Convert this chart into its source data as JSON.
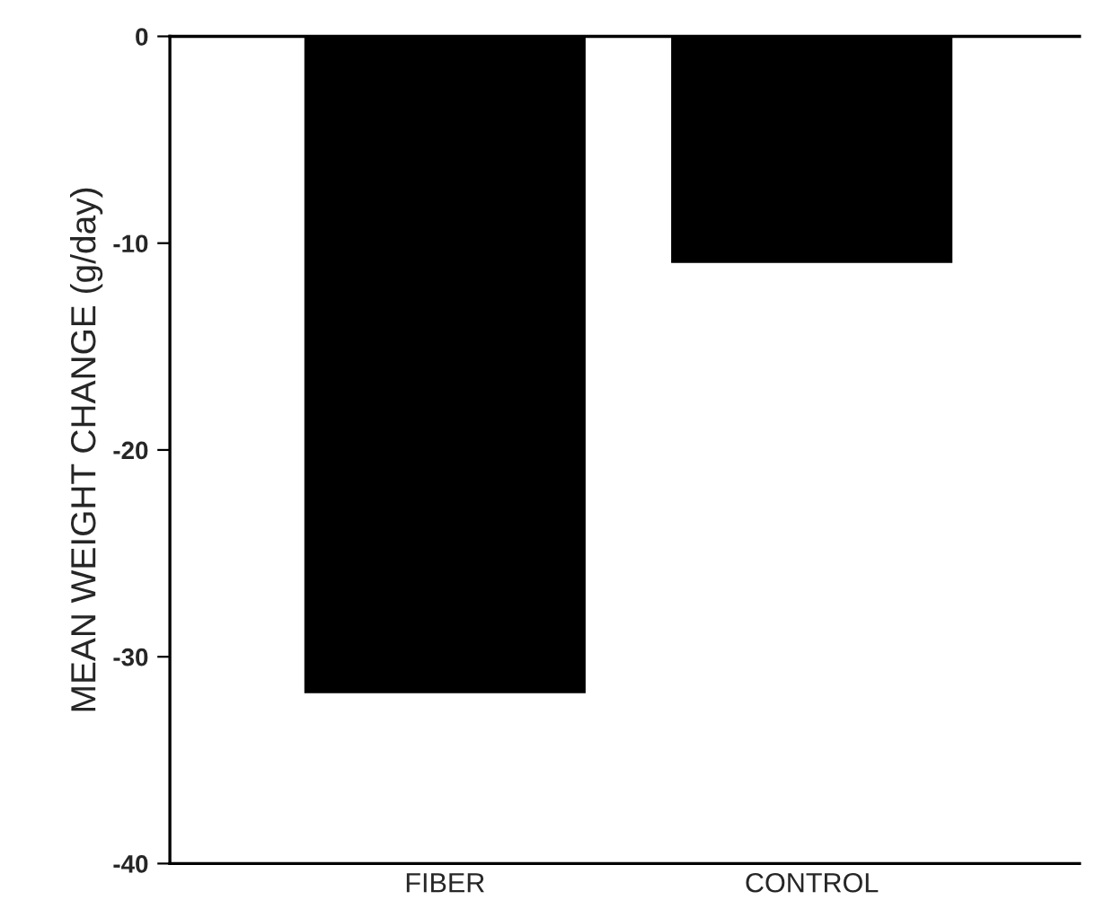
{
  "chart_data": {
    "type": "bar",
    "ylabel": "MEAN WEIGHT CHANGE (g/day)",
    "categories": [
      "FIBER",
      "CONTROL"
    ],
    "values": [
      -31.7,
      -10.9
    ],
    "color": "#000000",
    "ylim": [
      -40,
      0
    ],
    "yticks": [
      -40,
      -30,
      -20,
      -10,
      0
    ],
    "grid": false
  }
}
